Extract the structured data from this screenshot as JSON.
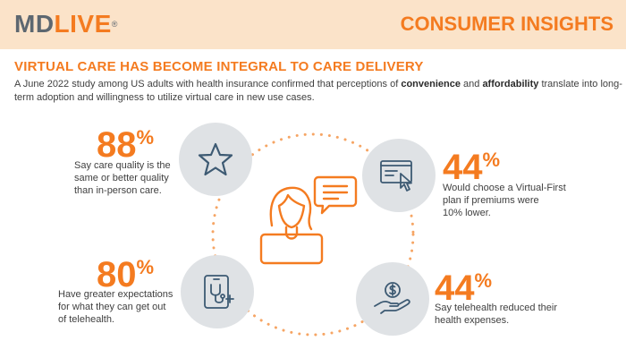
{
  "header": {
    "logo_md": "MD",
    "logo_live": "LIVE",
    "logo_mark": "®",
    "title": "CONSUMER INSIGHTS"
  },
  "main": {
    "title": "VIRTUAL CARE HAS BECOME INTEGRAL TO CARE DELIVERY",
    "intro_part1": "A June 2022 study among US adults with health insurance confirmed that perceptions of ",
    "intro_bold1": "convenience",
    "intro_part2": " and ",
    "intro_bold2": "affordability",
    "intro_part3": " translate into long-term adoption and willingness to utilize virtual care in new use cases."
  },
  "stats": [
    {
      "number": "88",
      "unit": "%",
      "line1": "Say care quality is the",
      "line2": "same or better quality",
      "line3": "than in-person care.",
      "icon": "star-icon"
    },
    {
      "number": "44",
      "unit": "%",
      "line1": "Would choose a Virtual-First",
      "line2": "plan if premiums were",
      "line3": "10% lower.",
      "icon": "click-browser-icon"
    },
    {
      "number": "80",
      "unit": "%",
      "line1": "Have greater expectations",
      "line2": "for what they can get out",
      "line3": "of telehealth.",
      "icon": "telehealth-tablet-icon"
    },
    {
      "number": "44",
      "unit": "%",
      "line1": "Say telehealth reduced their",
      "line2": "health expenses.",
      "line3": "",
      "icon": "hand-coin-icon"
    }
  ],
  "colors": {
    "accent": "#f47b20",
    "header_bg": "#fbe3c9",
    "circle_bg": "#dfe2e5",
    "icon_stroke": "#3d5a73"
  }
}
